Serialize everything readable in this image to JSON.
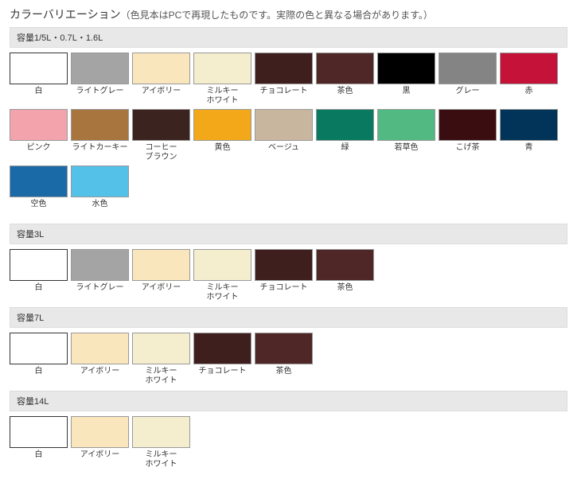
{
  "title_main": "カラーバリエーション",
  "title_sub": "（色見本はPCで再現したものです。実際の色と異なる場合があります。）",
  "sections": [
    {
      "header": "容量1/5L・0.7L・1.6L",
      "swatches": [
        {
          "label": "白",
          "color": "#ffffff",
          "white": true
        },
        {
          "label": "ライトグレー",
          "color": "#a4a4a4"
        },
        {
          "label": "アイボリー",
          "color": "#fae6bd"
        },
        {
          "label": "ミルキー\nホワイト",
          "color": "#f4edce"
        },
        {
          "label": "チョコレート",
          "color": "#3f1e1e"
        },
        {
          "label": "茶色",
          "color": "#4f2726"
        },
        {
          "label": "黒",
          "color": "#000000"
        },
        {
          "label": "グレー",
          "color": "#848484"
        },
        {
          "label": "赤",
          "color": "#c41239"
        },
        {
          "label": "ピンク",
          "color": "#f3a3ac"
        },
        {
          "label": "ライトカーキー",
          "color": "#a8753f"
        },
        {
          "label": "コーヒー\nブラウン",
          "color": "#3b2420"
        },
        {
          "label": "黄色",
          "color": "#f2a818"
        },
        {
          "label": "ベージュ",
          "color": "#c9b69e"
        },
        {
          "label": "緑",
          "color": "#09795f"
        },
        {
          "label": "若草色",
          "color": "#52b983"
        },
        {
          "label": "こげ茶",
          "color": "#3a0d10"
        },
        {
          "label": "青",
          "color": "#013458"
        },
        {
          "label": "空色",
          "color": "#1a6aa8"
        },
        {
          "label": "水色",
          "color": "#54c1e8"
        }
      ]
    },
    {
      "header": "容量3L",
      "swatches": [
        {
          "label": "白",
          "color": "#ffffff",
          "white": true
        },
        {
          "label": "ライトグレー",
          "color": "#a4a4a4"
        },
        {
          "label": "アイボリー",
          "color": "#fae6bd"
        },
        {
          "label": "ミルキー\nホワイト",
          "color": "#f4edce"
        },
        {
          "label": "チョコレート",
          "color": "#3f1e1e"
        },
        {
          "label": "茶色",
          "color": "#4f2726"
        }
      ]
    },
    {
      "header": "容量7L",
      "swatches": [
        {
          "label": "白",
          "color": "#ffffff",
          "white": true
        },
        {
          "label": "アイボリー",
          "color": "#fae6bd"
        },
        {
          "label": "ミルキー\nホワイト",
          "color": "#f4edce"
        },
        {
          "label": "チョコレート",
          "color": "#3f1e1e"
        },
        {
          "label": "茶色",
          "color": "#4f2726"
        }
      ]
    },
    {
      "header": "容量14L",
      "swatches": [
        {
          "label": "白",
          "color": "#ffffff",
          "white": true
        },
        {
          "label": "アイボリー",
          "color": "#fae6bd"
        },
        {
          "label": "ミルキー\nホワイト",
          "color": "#f4edce"
        }
      ]
    }
  ]
}
